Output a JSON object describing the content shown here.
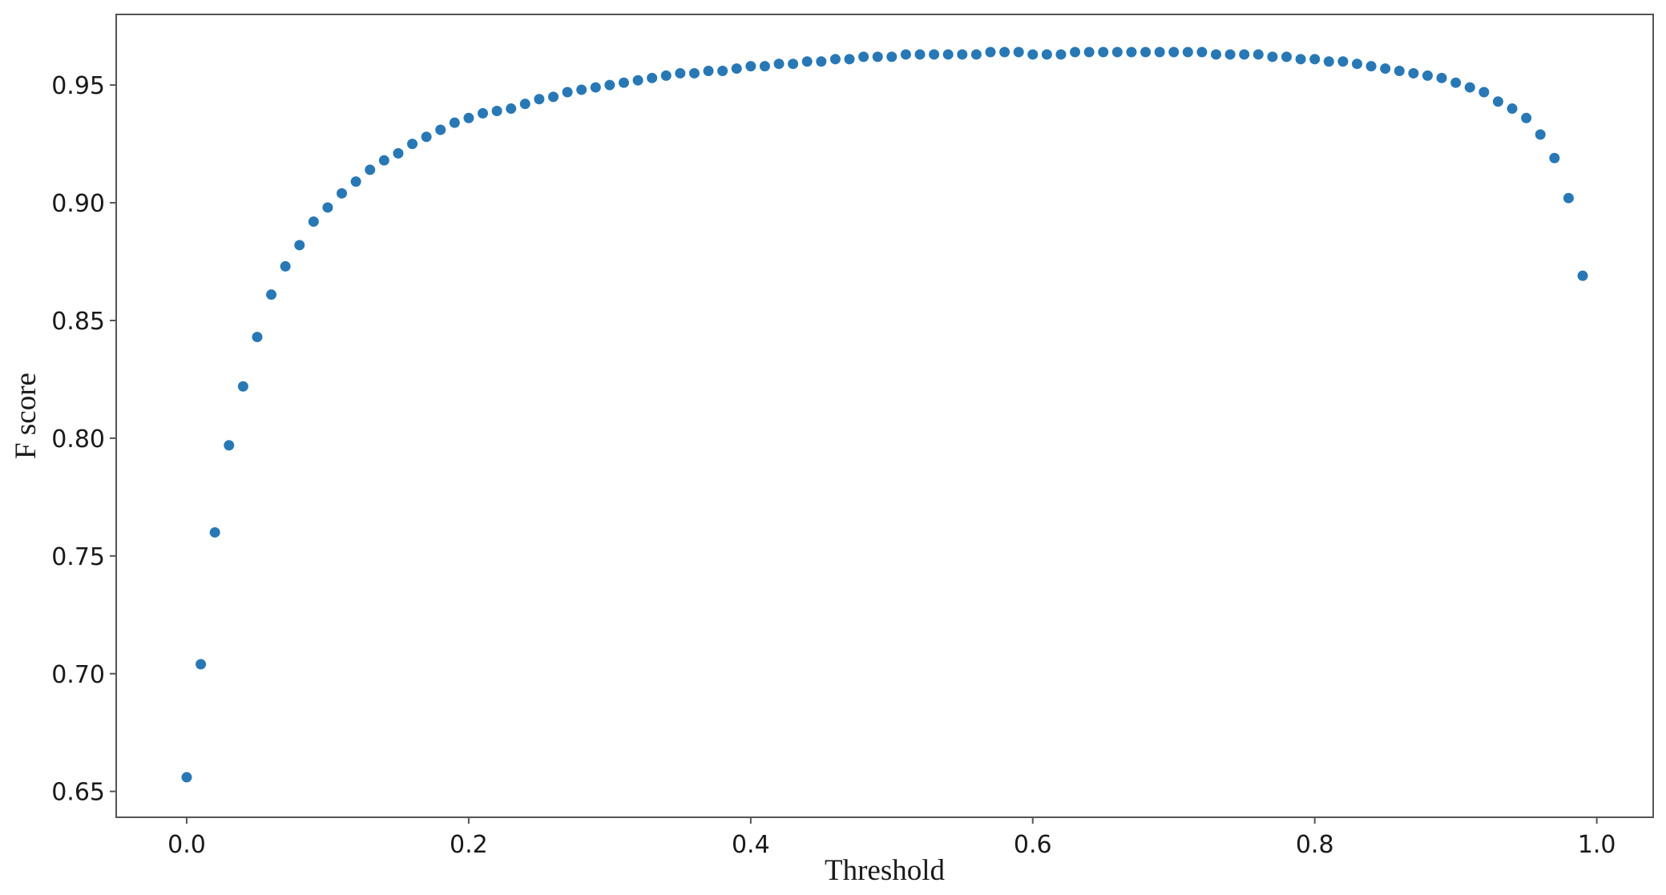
{
  "chart_data": {
    "type": "scatter",
    "title": "",
    "xlabel": "Threshold",
    "ylabel": "F score",
    "xlim": [
      -0.05,
      1.04
    ],
    "ylim": [
      0.639,
      0.98
    ],
    "grid": false,
    "legend": "none",
    "marker_color": "#2878b5",
    "x_ticks": [
      {
        "value": 0.0,
        "label": "0.0"
      },
      {
        "value": 0.2,
        "label": "0.2"
      },
      {
        "value": 0.4,
        "label": "0.4"
      },
      {
        "value": 0.6,
        "label": "0.6"
      },
      {
        "value": 0.8,
        "label": "0.8"
      },
      {
        "value": 1.0,
        "label": "1.0"
      }
    ],
    "y_ticks": [
      {
        "value": 0.65,
        "label": "0.65"
      },
      {
        "value": 0.7,
        "label": "0.70"
      },
      {
        "value": 0.75,
        "label": "0.75"
      },
      {
        "value": 0.8,
        "label": "0.80"
      },
      {
        "value": 0.85,
        "label": "0.85"
      },
      {
        "value": 0.9,
        "label": "0.90"
      },
      {
        "value": 0.95,
        "label": "0.95"
      }
    ],
    "x": [
      0.0,
      0.01,
      0.02,
      0.03,
      0.04,
      0.05,
      0.06,
      0.07,
      0.08,
      0.09,
      0.1,
      0.11,
      0.12,
      0.13,
      0.14,
      0.15,
      0.16,
      0.17,
      0.18,
      0.19,
      0.2,
      0.21,
      0.22,
      0.23,
      0.24,
      0.25,
      0.26,
      0.27,
      0.28,
      0.29,
      0.3,
      0.31,
      0.32,
      0.33,
      0.34,
      0.35,
      0.36,
      0.37,
      0.38,
      0.39,
      0.4,
      0.41,
      0.42,
      0.43,
      0.44,
      0.45,
      0.46,
      0.47,
      0.48,
      0.49,
      0.5,
      0.51,
      0.52,
      0.53,
      0.54,
      0.55,
      0.56,
      0.57,
      0.58,
      0.59,
      0.6,
      0.61,
      0.62,
      0.63,
      0.64,
      0.65,
      0.66,
      0.67,
      0.68,
      0.69,
      0.7,
      0.71,
      0.72,
      0.73,
      0.74,
      0.75,
      0.76,
      0.77,
      0.78,
      0.79,
      0.8,
      0.81,
      0.82,
      0.83,
      0.84,
      0.85,
      0.86,
      0.87,
      0.88,
      0.89,
      0.9,
      0.91,
      0.92,
      0.93,
      0.94,
      0.95,
      0.96,
      0.97,
      0.98,
      0.99
    ],
    "y": [
      0.656,
      0.704,
      0.76,
      0.797,
      0.822,
      0.843,
      0.861,
      0.873,
      0.882,
      0.892,
      0.898,
      0.904,
      0.909,
      0.914,
      0.918,
      0.921,
      0.925,
      0.928,
      0.931,
      0.934,
      0.936,
      0.938,
      0.939,
      0.94,
      0.942,
      0.944,
      0.945,
      0.947,
      0.948,
      0.949,
      0.95,
      0.951,
      0.952,
      0.953,
      0.954,
      0.955,
      0.955,
      0.956,
      0.956,
      0.957,
      0.958,
      0.958,
      0.959,
      0.959,
      0.96,
      0.96,
      0.961,
      0.961,
      0.962,
      0.962,
      0.962,
      0.963,
      0.963,
      0.963,
      0.963,
      0.963,
      0.963,
      0.964,
      0.964,
      0.964,
      0.963,
      0.963,
      0.963,
      0.964,
      0.964,
      0.964,
      0.964,
      0.964,
      0.964,
      0.964,
      0.964,
      0.964,
      0.964,
      0.963,
      0.963,
      0.963,
      0.963,
      0.962,
      0.962,
      0.961,
      0.961,
      0.96,
      0.96,
      0.959,
      0.958,
      0.957,
      0.956,
      0.955,
      0.954,
      0.953,
      0.951,
      0.949,
      0.947,
      0.943,
      0.94,
      0.936,
      0.929,
      0.919,
      0.902,
      0.869
    ]
  }
}
